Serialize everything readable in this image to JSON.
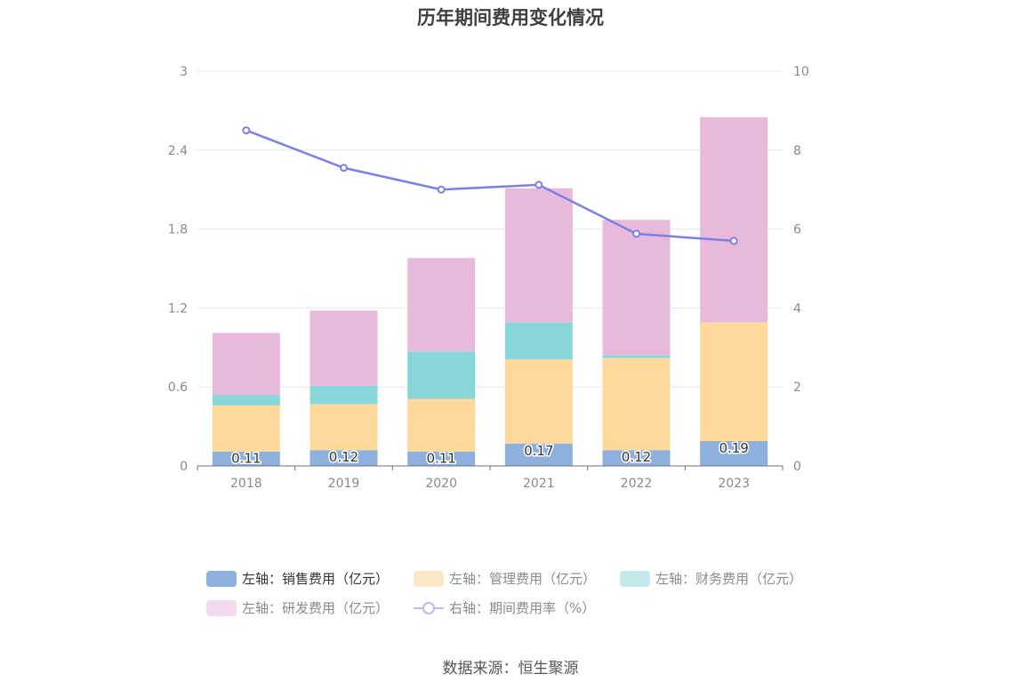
{
  "chart_data": {
    "type": "bar",
    "title": "历年期间费用变化情况",
    "categories": [
      "2018",
      "2019",
      "2020",
      "2021",
      "2022",
      "2023"
    ],
    "stacked": true,
    "y_left": {
      "min": 0,
      "max": 3,
      "ticks": [
        "0",
        "0.6",
        "1.2",
        "1.8",
        "2.4",
        "3"
      ]
    },
    "y_right": {
      "min": 0,
      "max": 10,
      "ticks": [
        "0",
        "2",
        "4",
        "6",
        "8",
        "10"
      ]
    },
    "grid": true,
    "legend_position": "bottom",
    "series": [
      {
        "name": "左轴：销售费用（亿元）",
        "type": "bar",
        "axis": "left",
        "color": "#8eb0dd",
        "values": [
          0.11,
          0.12,
          0.11,
          0.17,
          0.12,
          0.19
        ],
        "labels": [
          "0.11",
          "0.12",
          "0.11",
          "0.17",
          "0.12",
          "0.19"
        ]
      },
      {
        "name": "左轴：管理费用（亿元）",
        "type": "bar",
        "axis": "left",
        "color": "#ffd99c",
        "values": [
          0.35,
          0.35,
          0.4,
          0.64,
          0.7,
          0.9
        ]
      },
      {
        "name": "左轴：财务费用（亿元）",
        "type": "bar",
        "axis": "left",
        "color": "#88d6da",
        "values": [
          0.08,
          0.14,
          0.36,
          0.28,
          0.02,
          0.0
        ]
      },
      {
        "name": "左轴：研发费用（亿元）",
        "type": "bar",
        "axis": "left",
        "color": "#e7b9da",
        "values": [
          0.47,
          0.57,
          0.71,
          1.02,
          1.03,
          1.56
        ]
      },
      {
        "name": "右轴：期间费用率（%）",
        "type": "line",
        "axis": "right",
        "color": "#7b7fe8",
        "values": [
          8.5,
          7.55,
          7.0,
          7.12,
          5.88,
          5.7
        ]
      }
    ]
  },
  "legend_colors": {
    "sales": "#8eb0dd",
    "admin": "#fde8c6",
    "finance": "#c3e9eb",
    "rnd": "#f3d9ec",
    "rate": "#7b7fe8"
  },
  "source": "数据来源：恒生聚源"
}
